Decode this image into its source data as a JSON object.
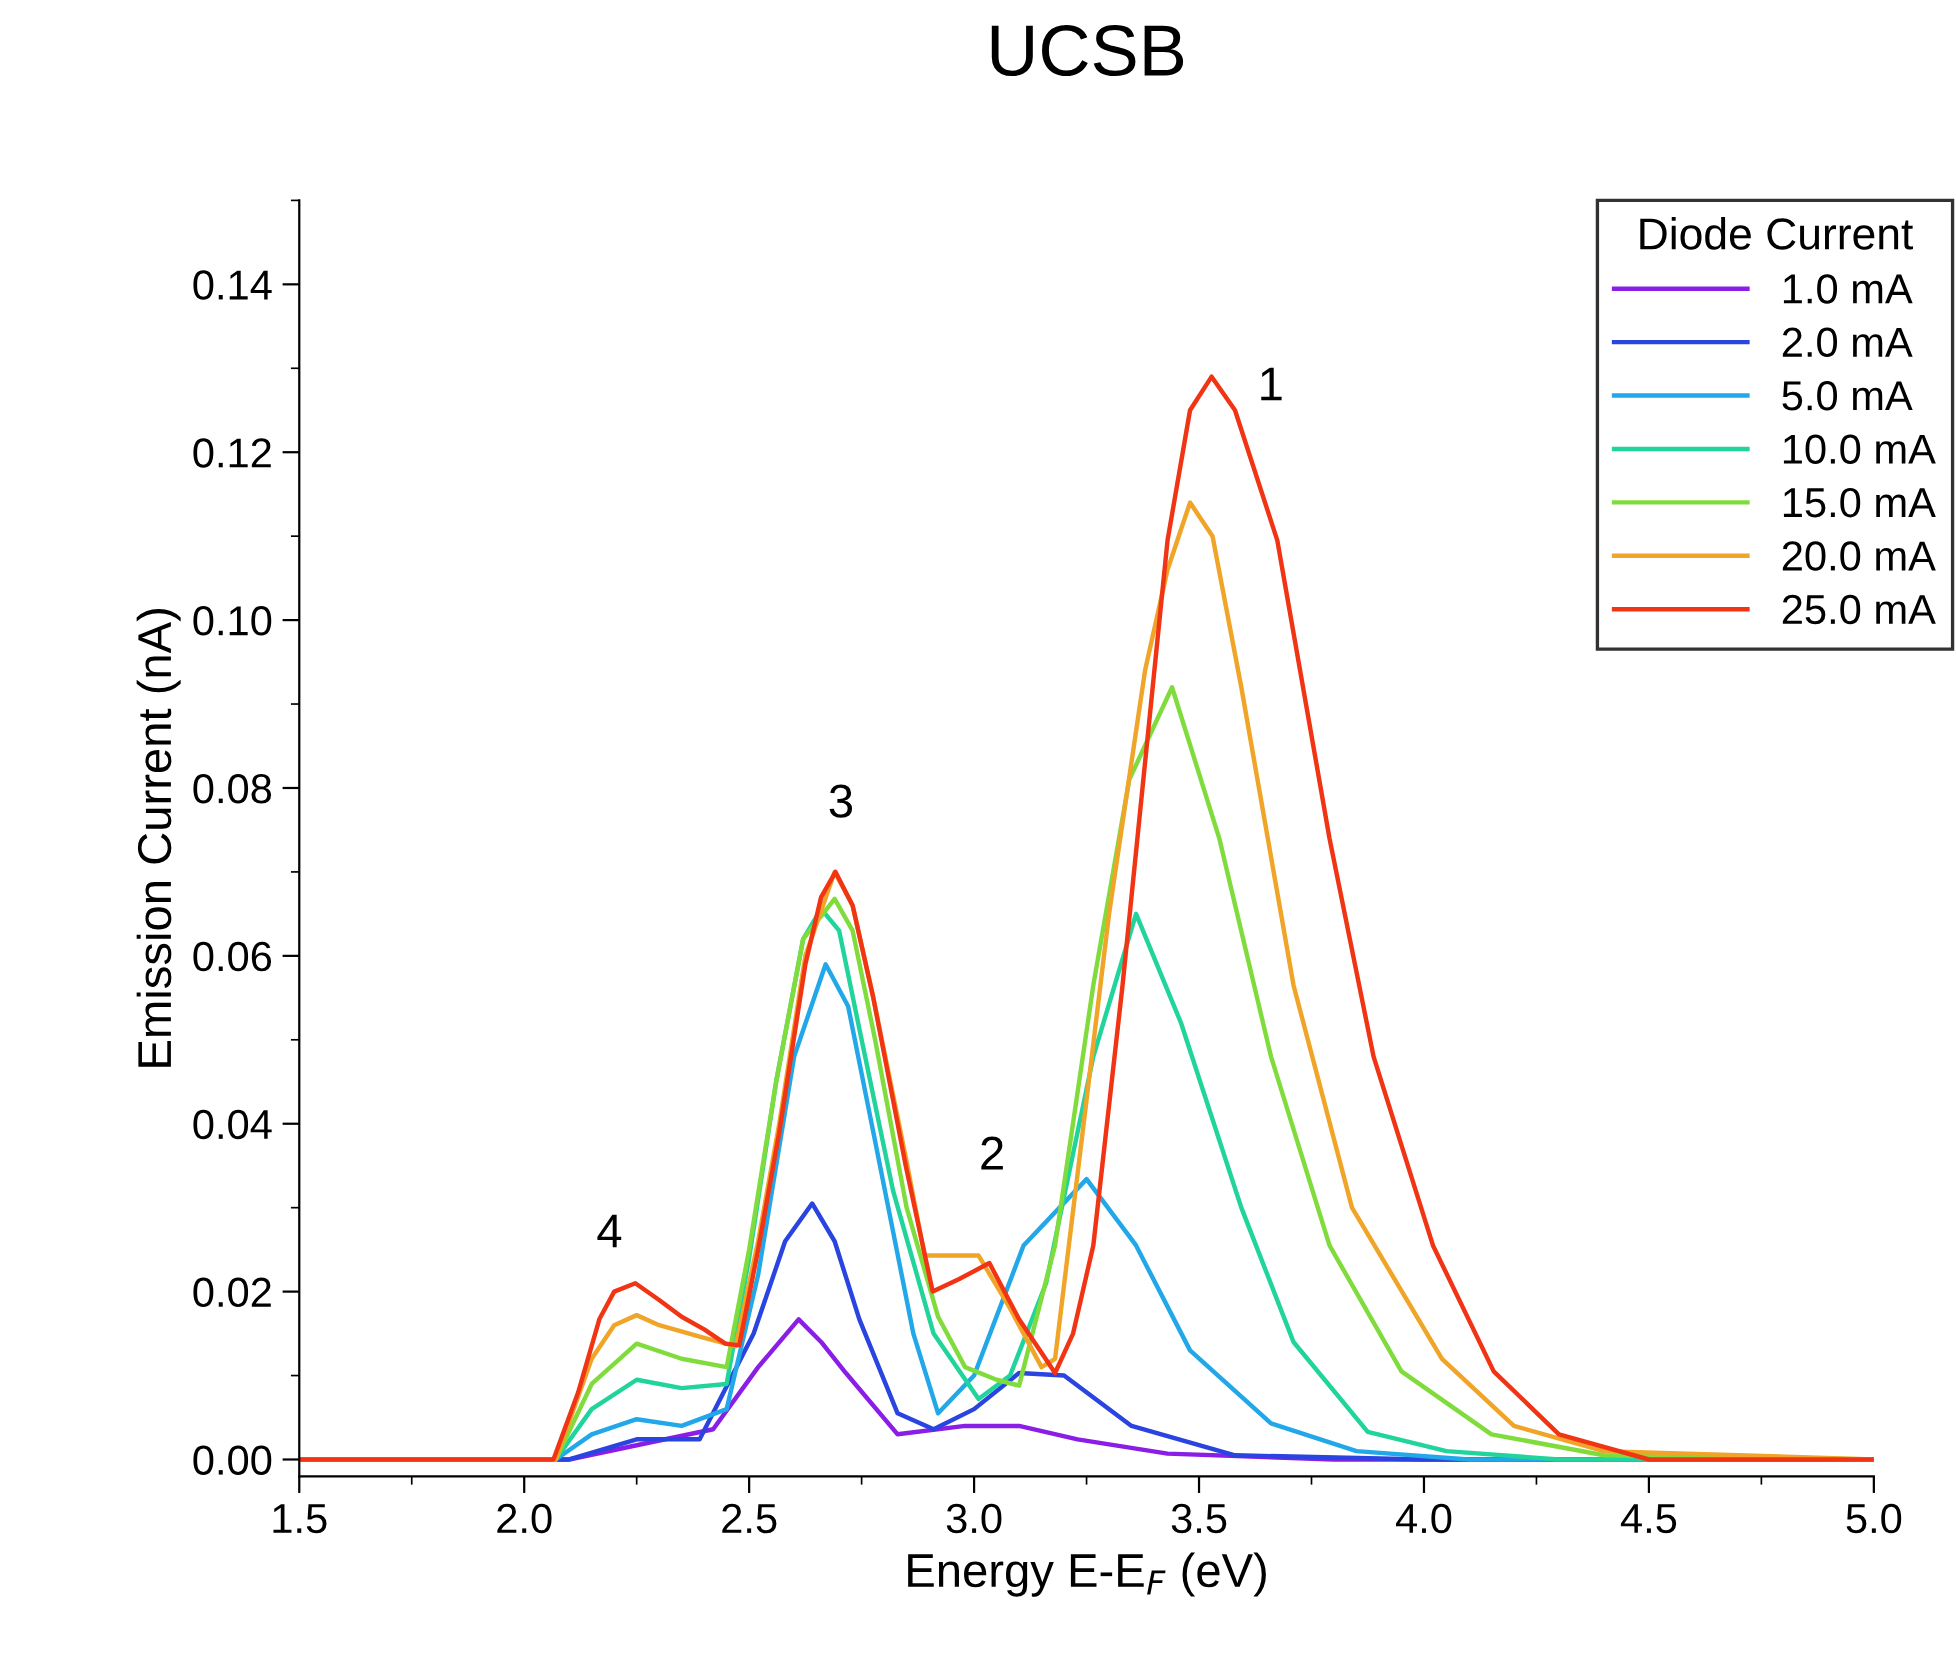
{
  "chart_data": {
    "type": "line",
    "title": "UCSB",
    "xlabel": "Energy E-E$_{F}$ (eV)",
    "ylabel": "Emission Current (nA)",
    "legend_title": "Diode Current",
    "legend": "top right",
    "grid": false,
    "marker": "none",
    "line_style": "solid",
    "xlim": [
      1.5,
      5.0
    ],
    "xticks": [
      1.5,
      {
        "value": 2,
        "label": "2.0"
      },
      2.5,
      {
        "value": 3,
        "label": "3.0"
      },
      3.5,
      {
        "value": 4,
        "label": "4.0"
      },
      4.5,
      {
        "value": 5,
        "label": "5.0"
      }
    ],
    "ylim": [
      -0.002,
      0.15
    ],
    "yticks": [
      {
        "value": 0,
        "label": "0.00"
      },
      0.02,
      0.04,
      0.06,
      0.08,
      {
        "value": 0.1,
        "label": "0.10"
      },
      0.12,
      0.14
    ],
    "annotations": [
      "1",
      "2",
      "3",
      "4"
    ],
    "series": [
      {
        "name": "1.0 mA",
        "color": "#8a1ee6",
        "x": [
          1.5,
          2.0,
          2.1,
          2.25,
          2.42,
          2.52,
          2.61,
          2.66,
          2.715,
          2.83,
          2.98,
          3.1,
          3.23,
          3.43,
          3.8,
          5.0
        ],
        "values": [
          0,
          0,
          0,
          0.0017,
          0.0036,
          0.011,
          0.0167,
          0.014,
          0.0103,
          0.003,
          0.004,
          0.004,
          0.0024,
          0.0007,
          0,
          0
        ]
      },
      {
        "name": "2.0 mA",
        "color": "#2a44e0",
        "x": [
          1.5,
          2.0,
          2.1,
          2.25,
          2.39,
          2.51,
          2.58,
          2.64,
          2.69,
          2.745,
          2.83,
          2.91,
          3.0,
          3.1,
          3.2,
          3.35,
          3.58,
          4.0,
          5.0
        ],
        "values": [
          0,
          0,
          0,
          0.0024,
          0.0024,
          0.015,
          0.026,
          0.0305,
          0.026,
          0.0167,
          0.0055,
          0.0036,
          0.006,
          0.0103,
          0.01,
          0.004,
          0.0005,
          0,
          0
        ]
      },
      {
        "name": "5.0 mA",
        "color": "#22a8e8",
        "x": [
          1.5,
          2.0,
          2.07,
          2.15,
          2.25,
          2.35,
          2.45,
          2.52,
          2.6,
          2.67,
          2.72,
          2.776,
          2.865,
          2.92,
          3.0,
          3.11,
          3.25,
          3.36,
          3.48,
          3.66,
          3.85,
          4.1,
          5.0
        ],
        "values": [
          0,
          0,
          0,
          0.003,
          0.0048,
          0.004,
          0.006,
          0.022,
          0.048,
          0.059,
          0.054,
          0.039,
          0.015,
          0.0055,
          0.01,
          0.0255,
          0.0334,
          0.0255,
          0.013,
          0.0043,
          0.001,
          0,
          0
        ]
      },
      {
        "name": "10.0 mA",
        "color": "#20d49c",
        "x": [
          1.5,
          2.0,
          2.07,
          2.15,
          2.25,
          2.35,
          2.45,
          2.5,
          2.56,
          2.62,
          2.66,
          2.7,
          2.75,
          2.82,
          2.91,
          3.01,
          3.08,
          3.16,
          3.265,
          3.36,
          3.46,
          3.594,
          3.71,
          3.875,
          4.05,
          4.3,
          5.0
        ],
        "values": [
          0,
          0,
          0,
          0.006,
          0.0095,
          0.0085,
          0.009,
          0.024,
          0.045,
          0.062,
          0.0656,
          0.063,
          0.05,
          0.032,
          0.015,
          0.0072,
          0.01,
          0.021,
          0.048,
          0.065,
          0.052,
          0.03,
          0.014,
          0.0033,
          0.001,
          0,
          0
        ]
      },
      {
        "name": "15.0 mA",
        "color": "#80dc3c",
        "x": [
          1.5,
          2.0,
          2.07,
          2.15,
          2.25,
          2.35,
          2.45,
          2.5,
          2.56,
          2.62,
          2.69,
          2.73,
          2.78,
          2.85,
          2.92,
          2.98,
          3.05,
          3.1,
          3.18,
          3.265,
          3.345,
          3.44,
          3.545,
          3.66,
          3.79,
          3.95,
          4.15,
          4.4,
          5.0
        ],
        "values": [
          0,
          0,
          0,
          0.009,
          0.0138,
          0.012,
          0.011,
          0.025,
          0.045,
          0.062,
          0.0668,
          0.063,
          0.05,
          0.03,
          0.017,
          0.011,
          0.0095,
          0.0088,
          0.0255,
          0.0565,
          0.081,
          0.092,
          0.074,
          0.048,
          0.0255,
          0.0105,
          0.003,
          0.0005,
          0
        ]
      },
      {
        "name": "20.0 mA",
        "color": "#f0a428",
        "x": [
          1.5,
          2.0,
          2.07,
          2.15,
          2.2,
          2.25,
          2.3,
          2.4,
          2.47,
          2.52,
          2.567,
          2.625,
          2.69,
          2.73,
          2.776,
          2.848,
          2.89,
          2.95,
          3.01,
          3.08,
          3.15,
          3.18,
          3.23,
          3.3,
          3.38,
          3.43,
          3.48,
          3.53,
          3.594,
          3.71,
          3.84,
          4.04,
          4.2,
          4.4,
          5.0
        ],
        "values": [
          0,
          0,
          0,
          0.012,
          0.016,
          0.0172,
          0.016,
          0.0145,
          0.0135,
          0.026,
          0.04,
          0.06,
          0.07,
          0.066,
          0.055,
          0.036,
          0.0243,
          0.0243,
          0.0243,
          0.018,
          0.011,
          0.012,
          0.034,
          0.065,
          0.094,
          0.106,
          0.114,
          0.11,
          0.092,
          0.0565,
          0.03,
          0.012,
          0.004,
          0.001,
          0
        ]
      },
      {
        "name": "25.0 mA",
        "color": "#f03414",
        "x": [
          1.5,
          2.0,
          2.065,
          2.12,
          2.167,
          2.2,
          2.247,
          2.3,
          2.35,
          2.4,
          2.447,
          2.478,
          2.52,
          2.567,
          2.625,
          2.66,
          2.692,
          2.73,
          2.776,
          2.848,
          2.908,
          2.967,
          3.034,
          3.1,
          3.18,
          3.22,
          3.265,
          3.33,
          3.38,
          3.43,
          3.48,
          3.528,
          3.58,
          3.674,
          3.79,
          3.888,
          4.02,
          4.155,
          4.3,
          4.5,
          5.0
        ],
        "values": [
          0,
          0,
          0,
          0.008,
          0.0167,
          0.02,
          0.021,
          0.019,
          0.017,
          0.0155,
          0.0138,
          0.0136,
          0.025,
          0.039,
          0.059,
          0.067,
          0.07,
          0.066,
          0.055,
          0.035,
          0.02,
          0.0215,
          0.0234,
          0.0167,
          0.0103,
          0.015,
          0.0255,
          0.0565,
          0.083,
          0.1095,
          0.125,
          0.129,
          0.125,
          0.1095,
          0.074,
          0.048,
          0.0255,
          0.0105,
          0.003,
          0,
          0
        ]
      }
    ]
  }
}
